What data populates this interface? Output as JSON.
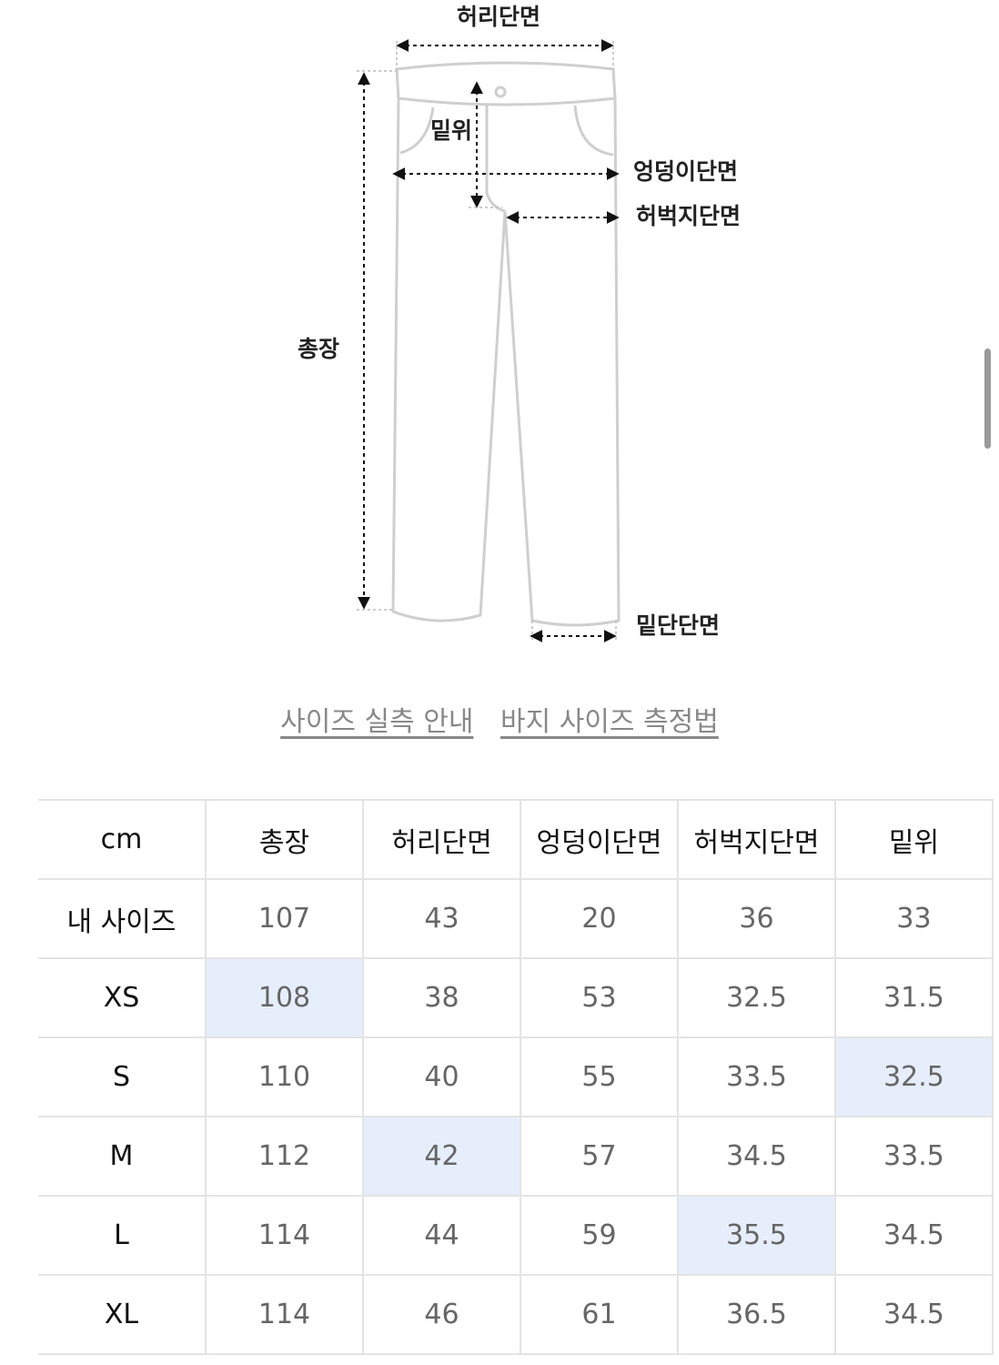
{
  "diagram": {
    "labels": {
      "waist": "허리단면",
      "rise": "밑위",
      "hip": "엉덩이단면",
      "thigh": "허벅지단면",
      "length": "총장",
      "hem": "밑단단면"
    }
  },
  "links": [
    "사이즈 실측 안내",
    "바지 사이즈 측정법"
  ],
  "table": {
    "header": [
      "cm",
      "총장",
      "허리단면",
      "엉덩이단면",
      "허벅지단면",
      "밑위"
    ],
    "rows": [
      [
        "내 사이즈",
        107,
        43,
        20,
        36,
        33
      ],
      [
        "XS",
        108,
        38,
        53,
        32.5,
        31.5
      ],
      [
        "S",
        110,
        40,
        55,
        33.5,
        32.5
      ],
      [
        "M",
        112,
        42,
        57,
        34.5,
        33.5
      ],
      [
        "L",
        114,
        44,
        59,
        35.5,
        34.5
      ],
      [
        "XL",
        114,
        46,
        61,
        36.5,
        34.5
      ]
    ],
    "highlights": [
      [
        1,
        1
      ],
      [
        2,
        5
      ],
      [
        3,
        2
      ],
      [
        4,
        4
      ]
    ],
    "highlight_color": "#e6eefb"
  }
}
